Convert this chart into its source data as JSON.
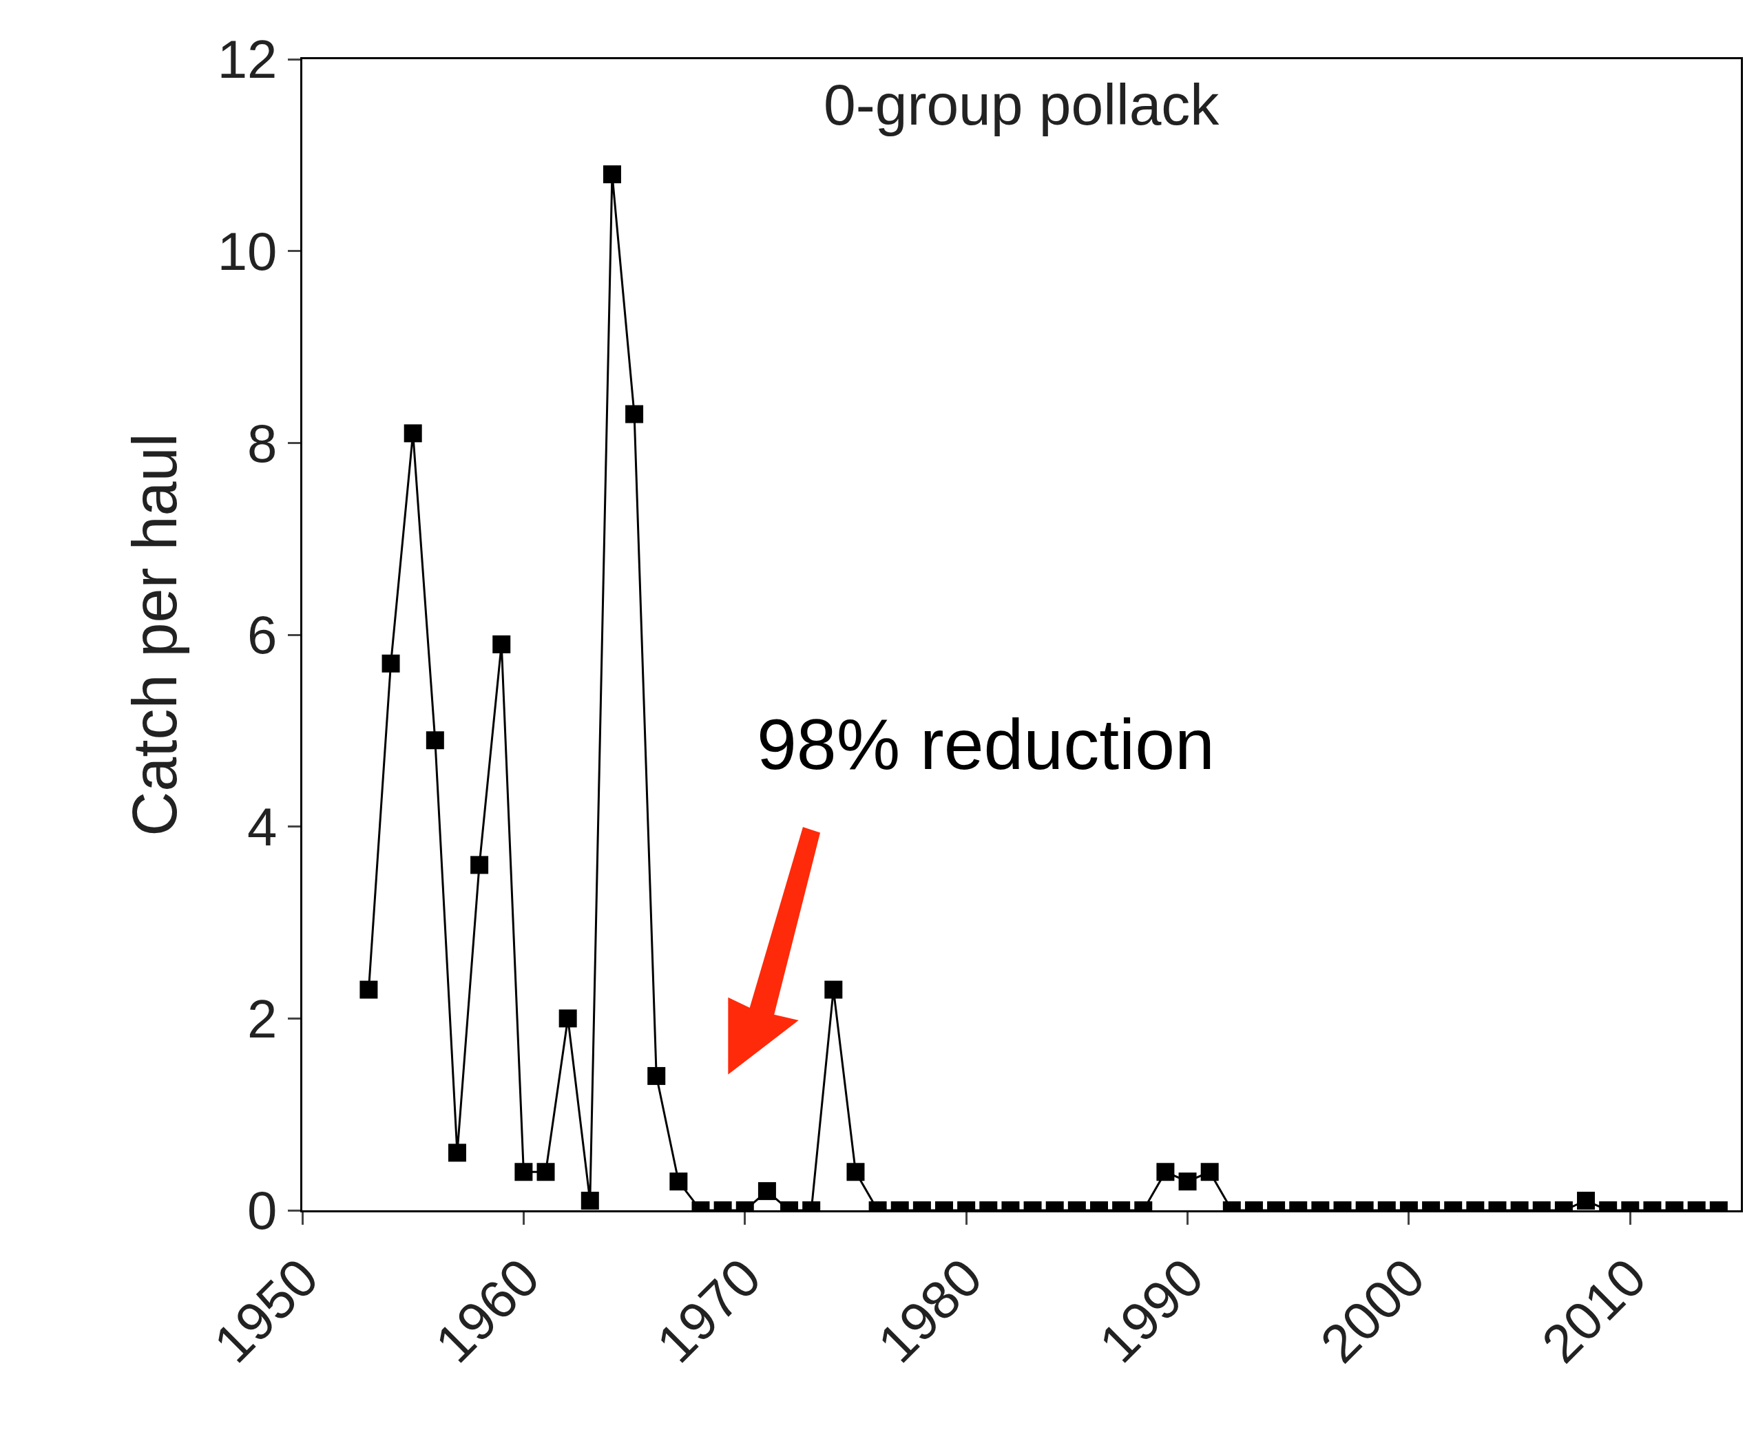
{
  "chart_data": {
    "type": "line",
    "title": "0-group pollack",
    "ylabel": "Catch per haul",
    "x": [
      1953,
      1954,
      1955,
      1956,
      1957,
      1958,
      1959,
      1960,
      1961,
      1962,
      1963,
      1964,
      1965,
      1966,
      1967,
      1968,
      1969,
      1970,
      1971,
      1972,
      1973,
      1974,
      1975,
      1976,
      1977,
      1978,
      1979,
      1980,
      1981,
      1982,
      1983,
      1984,
      1985,
      1986,
      1987,
      1988,
      1989,
      1990,
      1991,
      1992,
      1993,
      1994,
      1995,
      1996,
      1997,
      1998,
      1999,
      2000,
      2001,
      2002,
      2003,
      2004,
      2005,
      2006,
      2007,
      2008,
      2009,
      2010,
      2011,
      2012,
      2013,
      2014
    ],
    "series": [
      {
        "color": "#000000",
        "values": [
          2.3,
          5.7,
          8.1,
          4.9,
          0.6,
          3.6,
          5.9,
          0.4,
          0.4,
          2.0,
          0.1,
          10.8,
          8.3,
          1.4,
          0.3,
          0,
          0,
          0,
          0.2,
          0,
          0,
          2.3,
          0.4,
          0,
          0,
          0,
          0,
          0,
          0,
          0,
          0,
          0,
          0,
          0,
          0,
          0,
          0.4,
          0.3,
          0.4,
          0,
          0,
          0,
          0,
          0,
          0,
          0,
          0,
          0,
          0,
          0,
          0,
          0,
          0,
          0,
          0,
          0.1,
          0,
          0,
          0,
          0,
          0,
          0
        ]
      }
    ],
    "xlim": [
      1950,
      2015
    ],
    "xticks": [
      1950,
      1960,
      1970,
      1980,
      1990,
      2000,
      2010
    ],
    "ylim": [
      0,
      12
    ],
    "yticks": [
      0,
      2,
      4,
      6,
      8,
      10,
      12
    ],
    "annotations": [
      "98% reduction"
    ],
    "marker": "square",
    "line_style": "solid"
  }
}
